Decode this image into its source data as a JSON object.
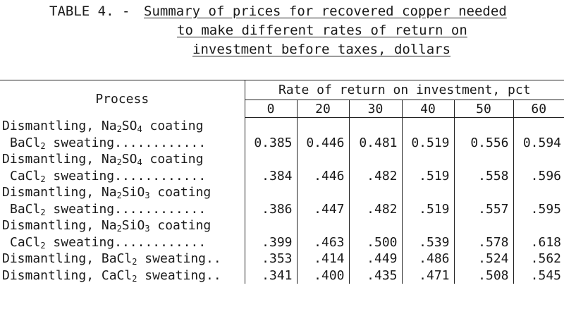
{
  "title": {
    "prefix": "TABLE 4. -",
    "line1": "Summary of prices for recovered copper needed",
    "line2": "to make different rates of return on",
    "line3": "investment before taxes, dollars"
  },
  "table": {
    "process_header": "Process",
    "rate_header": "Rate of return on investment, pct",
    "columns": [
      "0",
      "20",
      "30",
      "40",
      "50",
      "60"
    ],
    "rows": [
      {
        "label_a": "Dismantling, Na",
        "sub_a": "2",
        "label_b": "SO",
        "sub_b": "4",
        "label_c": " coating",
        "label2_a": "BaCl",
        "sub2": "2",
        "label2_b": " sweating............",
        "values": [
          "0.385",
          "0.446",
          "0.481",
          "0.519",
          "0.556",
          "0.594"
        ]
      },
      {
        "label_a": "Dismantling, Na",
        "sub_a": "2",
        "label_b": "SO",
        "sub_b": "4",
        "label_c": " coating",
        "label2_a": "CaCl",
        "sub2": "2",
        "label2_b": " sweating............",
        "values": [
          ".384",
          ".446",
          ".482",
          ".519",
          ".558",
          ".596"
        ]
      },
      {
        "label_a": "Dismantling, Na",
        "sub_a": "2",
        "label_b": "SiO",
        "sub_b": "3",
        "label_c": " coating",
        "label2_a": "BaCl",
        "sub2": "2",
        "label2_b": " sweating............",
        "values": [
          ".386",
          ".447",
          ".482",
          ".519",
          ".557",
          ".595"
        ]
      },
      {
        "label_a": "Dismantling, Na",
        "sub_a": "2",
        "label_b": "SiO",
        "sub_b": "3",
        "label_c": " coating",
        "label2_a": "CaCl",
        "sub2": "2",
        "label2_b": " sweating............",
        "values": [
          ".399",
          ".463",
          ".500",
          ".539",
          ".578",
          ".618"
        ]
      },
      {
        "label2_a": "Dismantling, BaCl",
        "sub2": "2",
        "label2_b": " sweating..",
        "values": [
          ".353",
          ".414",
          ".449",
          ".486",
          ".524",
          ".562"
        ]
      },
      {
        "label2_a": "Dismantling, CaCl",
        "sub2": "2",
        "label2_b": " sweating..",
        "values": [
          ".341",
          ".400",
          ".435",
          ".471",
          ".508",
          ".545"
        ]
      }
    ]
  }
}
